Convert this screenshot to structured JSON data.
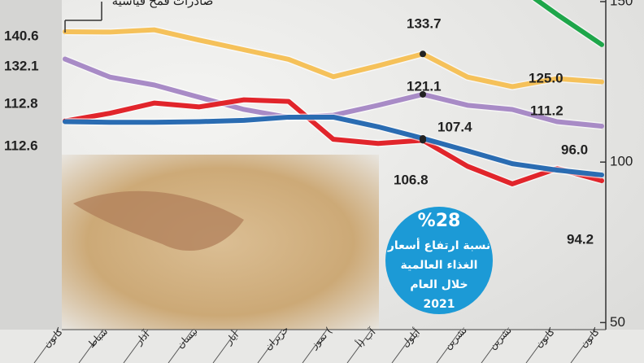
{
  "chart_data": {
    "type": "line",
    "annotation": "صادرات قمح قياسية",
    "categories": [
      "كانون",
      "شباط",
      "آذار",
      "نيسان",
      "أيار",
      "حزيران",
      "تموز (",
      "آب (أ",
      "أيلول",
      "تشرين",
      "تشرين",
      "كانون",
      "كانون"
    ],
    "series": [
      {
        "name": "yellow",
        "color": "#f5c15a",
        "values": [
          140.6,
          140.5,
          141.2,
          138.0,
          135.0,
          132.0,
          126.6,
          130.0,
          133.7,
          126.5,
          123.5,
          126.0,
          125.0
        ],
        "value_labels": [
          "140.6",
          null,
          null,
          null,
          null,
          null,
          null,
          null,
          "133.7",
          null,
          null,
          null,
          "125.0"
        ]
      },
      {
        "name": "purple",
        "color": "#a88bc6",
        "values": [
          132.1,
          126.5,
          124.0,
          120.2,
          116.4,
          113.9,
          114.6,
          117.7,
          121.1,
          117.7,
          116.4,
          112.6,
          111.2
        ],
        "value_labels": [
          "132.1",
          null,
          null,
          null,
          null,
          null,
          null,
          null,
          "121.1",
          null,
          null,
          null,
          "111.2"
        ]
      },
      {
        "name": "red",
        "color": "#e1252b",
        "values": [
          112.8,
          115.2,
          118.4,
          117.2,
          119.4,
          118.9,
          107.1,
          105.8,
          106.8,
          98.7,
          93.2,
          98.0,
          94.2
        ],
        "value_labels": [
          "112.8",
          null,
          null,
          null,
          null,
          null,
          null,
          null,
          "106.8",
          null,
          null,
          null,
          "94.2"
        ]
      },
      {
        "name": "blue",
        "color": "#2a6cb2",
        "values": [
          112.6,
          112.4,
          112.4,
          112.6,
          113.0,
          114.0,
          114.0,
          111.0,
          107.4,
          103.5,
          99.5,
          97.5,
          96.0
        ],
        "value_labels": [
          "112.6",
          null,
          null,
          null,
          null,
          null,
          null,
          null,
          "107.4",
          null,
          null,
          null,
          "96.0"
        ]
      },
      {
        "name": "green",
        "color": "#1ea64a",
        "values": [
          null,
          null,
          null,
          null,
          null,
          null,
          null,
          null,
          null,
          null,
          156.0,
          146.0,
          136.6
        ]
      }
    ],
    "ylim": [
      44,
      150.5
    ],
    "yticks": [
      50,
      100,
      150
    ],
    "callout": {
      "percent": "%28",
      "line1": "نسبة ارتفاع أسعار",
      "line2": "الغذاء العالمية",
      "line3": "خلال العام",
      "year": "2021"
    }
  }
}
